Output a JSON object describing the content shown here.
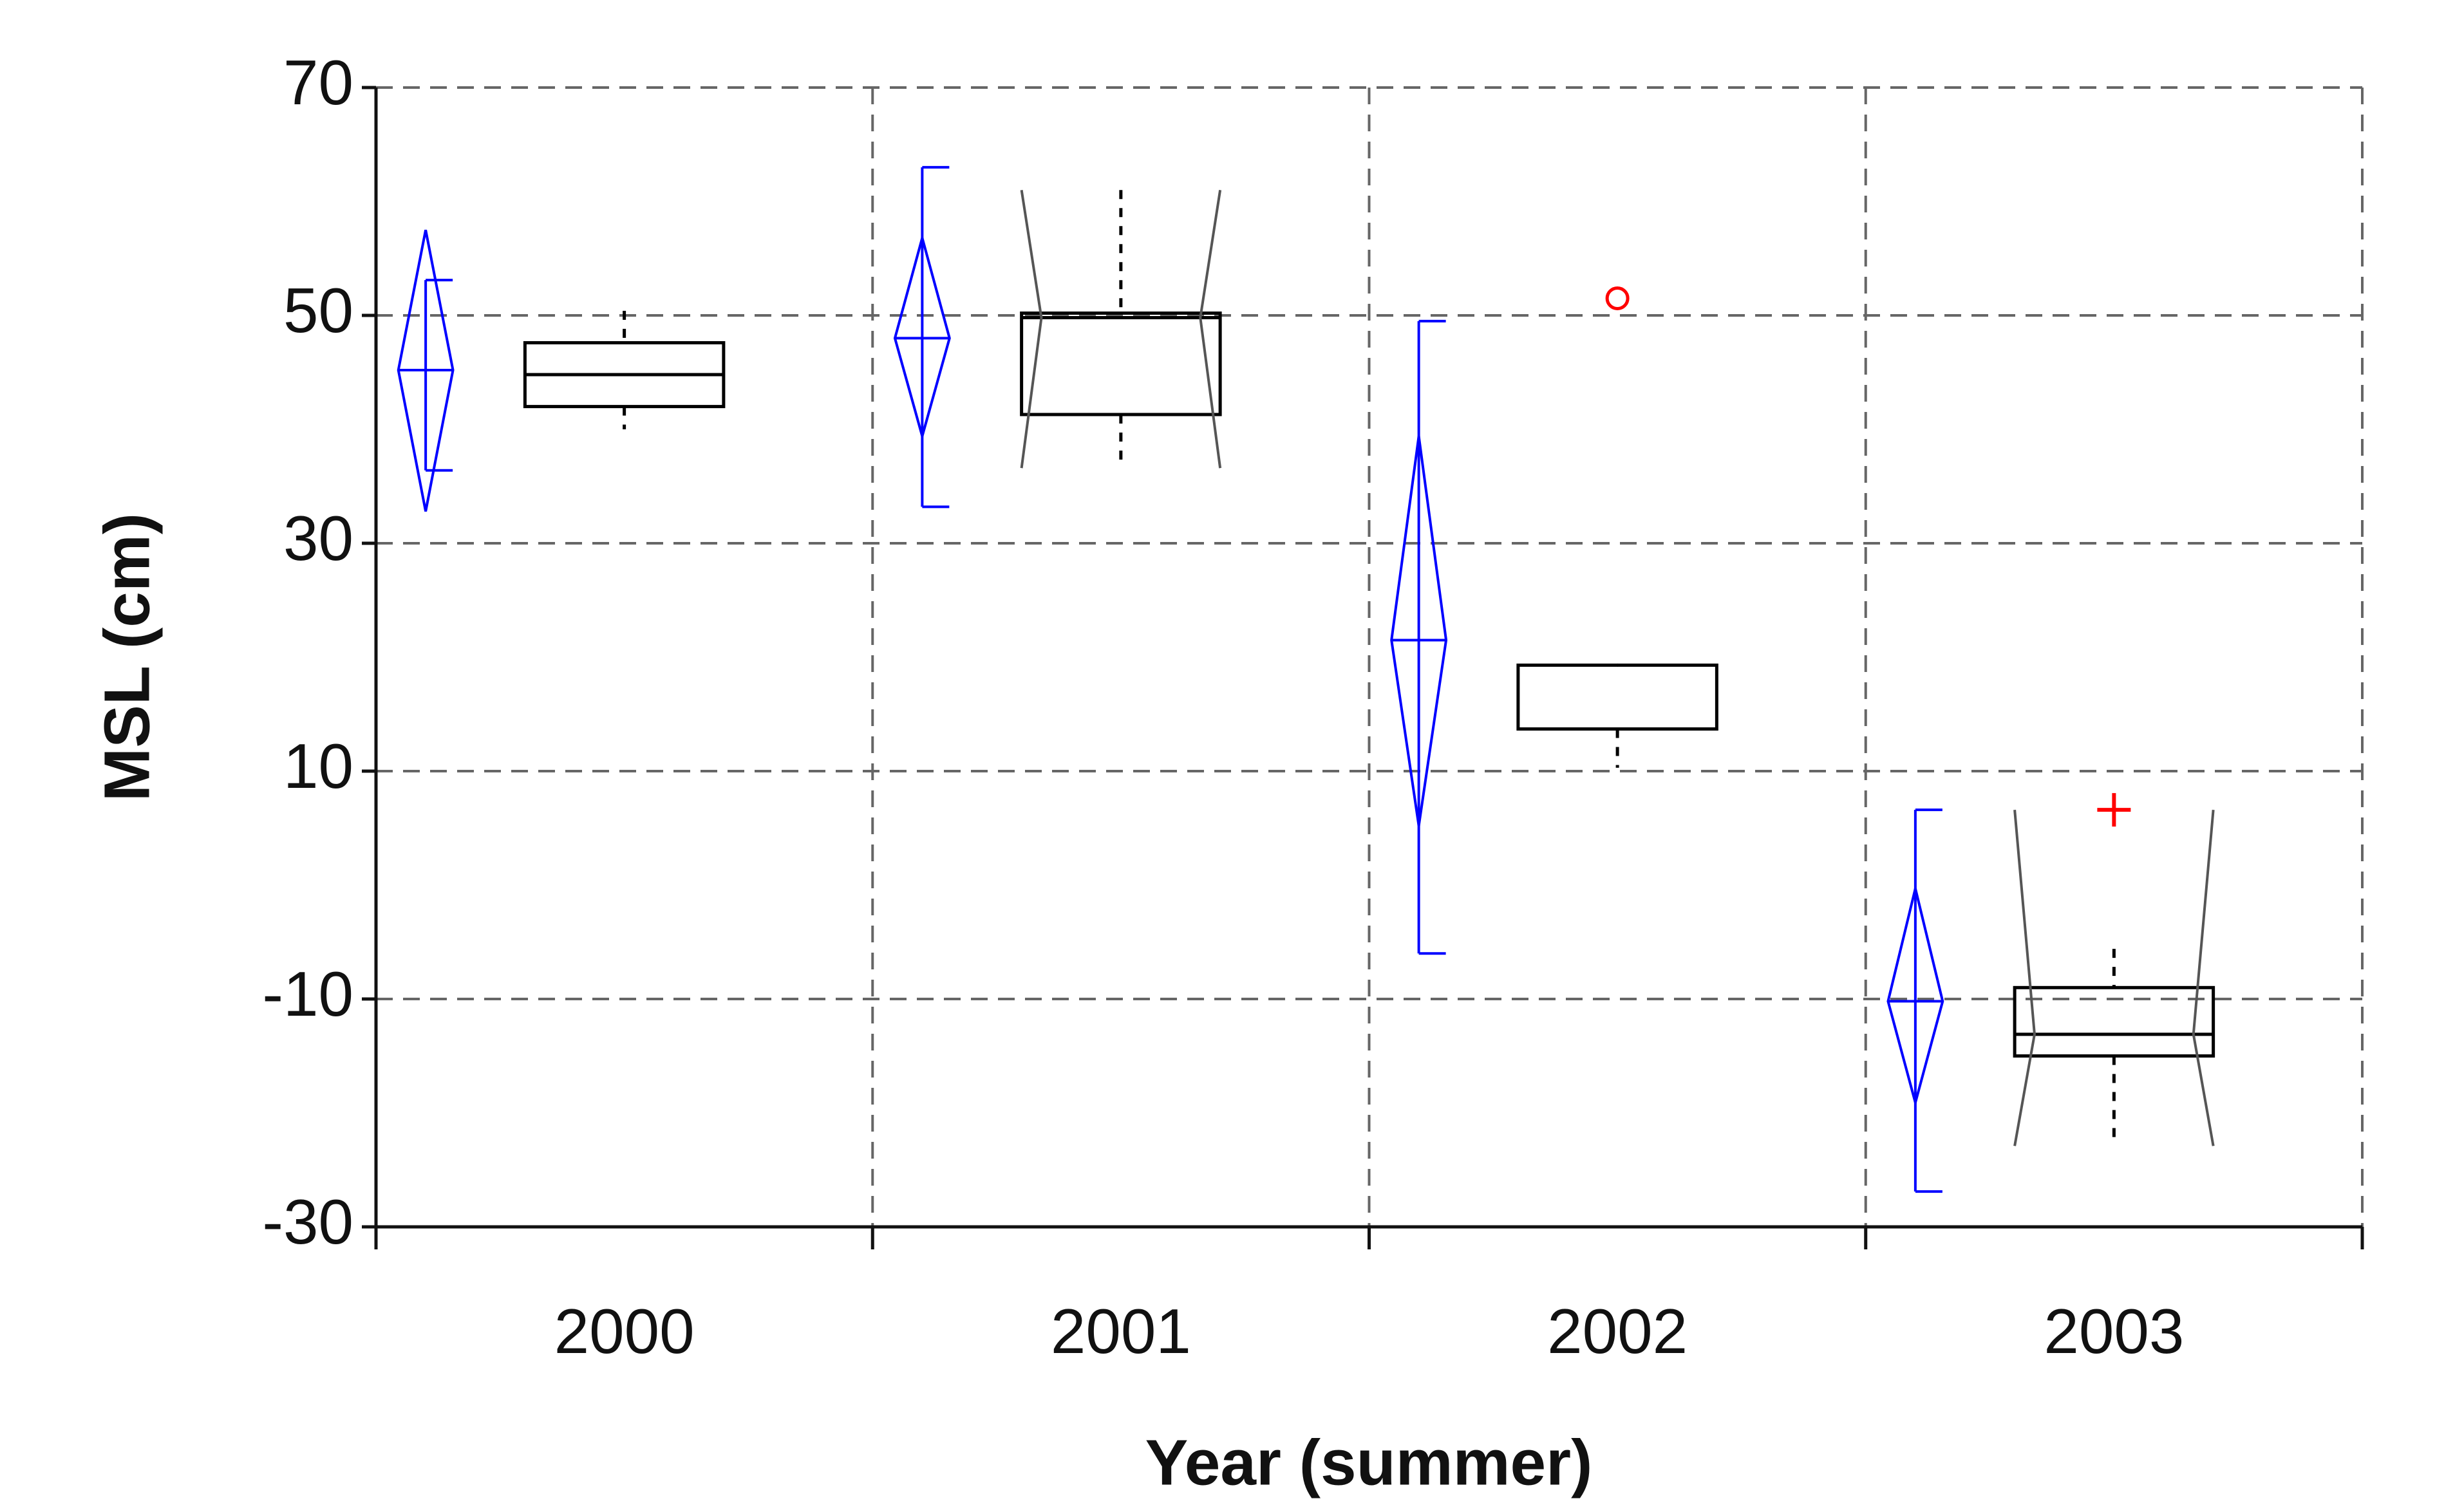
{
  "chart_data": {
    "type": "box",
    "x_label": "Year (summer)",
    "y_label": "MSL (cm)",
    "categories": [
      "2000",
      "2001",
      "2002",
      "2003"
    ],
    "ylim": [
      -30,
      70
    ],
    "yticks": [
      -30,
      -10,
      10,
      30,
      50,
      70
    ],
    "grid": true,
    "diamond": {
      "color": "#0000ff",
      "mean": [
        45.2,
        48,
        21.5,
        -10.2
      ],
      "ci_low": [
        32.8,
        39.4,
        5.2,
        -19.1
      ],
      "ci_high": [
        57.5,
        56.8,
        39.4,
        -0.3
      ],
      "range_low": [
        36.4,
        33.2,
        -6,
        -26.9
      ],
      "range_high": [
        53.1,
        63,
        49.5,
        6.6
      ]
    },
    "box": {
      "color": "#000000",
      "whisker_low": [
        40,
        36.6,
        10.3,
        -22.9
      ],
      "q1": [
        42,
        41.3,
        13.7,
        -15
      ],
      "median": [
        44.8,
        49.8,
        13.7,
        -13.1
      ],
      "q3": [
        47.6,
        50.2,
        19.3,
        -9
      ],
      "whisker_high": [
        50.4,
        61,
        19.3,
        -5.6
      ],
      "notch_low": [
        null,
        36.6,
        null,
        -22.9
      ],
      "notch_high": [
        null,
        61,
        null,
        6.6
      ]
    },
    "outliers": [
      {
        "category": "2002",
        "value": 51.5,
        "marker": "circle",
        "color": "#ff0000"
      },
      {
        "category": "2003",
        "value": 6.6,
        "marker": "plus",
        "color": "#ff0000"
      }
    ]
  }
}
